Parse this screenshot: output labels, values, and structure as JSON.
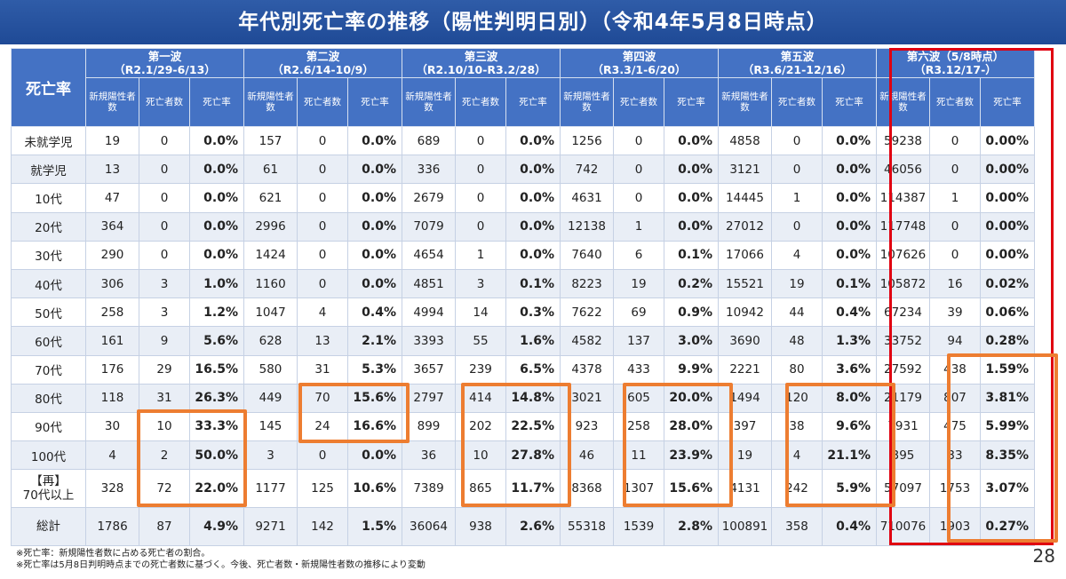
{
  "title": "年代別死亡率の推移（陽性判明日別）（令和4年5月8日時点）",
  "corner_label": "死亡率",
  "sub_headers": [
    "新規陽性者数",
    "死亡者数",
    "死亡率"
  ],
  "waves": [
    {
      "name": "第一波",
      "period": "（R2.1/29-6/13）"
    },
    {
      "name": "第二波",
      "period": "（R2.6/14-10/9）"
    },
    {
      "name": "第三波",
      "period": "（R2.10/10-R3.2/28）"
    },
    {
      "name": "第四波",
      "period": "（R3.3/1-6/20）"
    },
    {
      "name": "第五波",
      "period": "（R3.6/21-12/16）"
    },
    {
      "name": "第六波（5/8時点）",
      "period": "（R3.12/17-）"
    }
  ],
  "rows": [
    {
      "label": "未就学児",
      "cells": [
        [
          "19",
          "0",
          "0.0%"
        ],
        [
          "157",
          "0",
          "0.0%"
        ],
        [
          "689",
          "0",
          "0.0%"
        ],
        [
          "1256",
          "0",
          "0.0%"
        ],
        [
          "4858",
          "0",
          "0.0%"
        ],
        [
          "59238",
          "0",
          "0.00%"
        ]
      ]
    },
    {
      "label": "就学児",
      "cells": [
        [
          "13",
          "0",
          "0.0%"
        ],
        [
          "61",
          "0",
          "0.0%"
        ],
        [
          "336",
          "0",
          "0.0%"
        ],
        [
          "742",
          "0",
          "0.0%"
        ],
        [
          "3121",
          "0",
          "0.0%"
        ],
        [
          "46056",
          "0",
          "0.00%"
        ]
      ]
    },
    {
      "label": "10代",
      "cells": [
        [
          "47",
          "0",
          "0.0%"
        ],
        [
          "621",
          "0",
          "0.0%"
        ],
        [
          "2679",
          "0",
          "0.0%"
        ],
        [
          "4631",
          "0",
          "0.0%"
        ],
        [
          "14445",
          "1",
          "0.0%"
        ],
        [
          "114387",
          "1",
          "0.00%"
        ]
      ]
    },
    {
      "label": "20代",
      "cells": [
        [
          "364",
          "0",
          "0.0%"
        ],
        [
          "2996",
          "0",
          "0.0%"
        ],
        [
          "7079",
          "0",
          "0.0%"
        ],
        [
          "12138",
          "1",
          "0.0%"
        ],
        [
          "27012",
          "0",
          "0.0%"
        ],
        [
          "117748",
          "0",
          "0.00%"
        ]
      ]
    },
    {
      "label": "30代",
      "cells": [
        [
          "290",
          "0",
          "0.0%"
        ],
        [
          "1424",
          "0",
          "0.0%"
        ],
        [
          "4654",
          "1",
          "0.0%"
        ],
        [
          "7640",
          "6",
          "0.1%"
        ],
        [
          "17066",
          "4",
          "0.0%"
        ],
        [
          "107626",
          "0",
          "0.00%"
        ]
      ]
    },
    {
      "label": "40代",
      "cells": [
        [
          "306",
          "3",
          "1.0%"
        ],
        [
          "1160",
          "0",
          "0.0%"
        ],
        [
          "4851",
          "3",
          "0.1%"
        ],
        [
          "8223",
          "19",
          "0.2%"
        ],
        [
          "15521",
          "19",
          "0.1%"
        ],
        [
          "105872",
          "16",
          "0.02%"
        ]
      ]
    },
    {
      "label": "50代",
      "cells": [
        [
          "258",
          "3",
          "1.2%"
        ],
        [
          "1047",
          "4",
          "0.4%"
        ],
        [
          "4994",
          "14",
          "0.3%"
        ],
        [
          "7622",
          "69",
          "0.9%"
        ],
        [
          "10942",
          "44",
          "0.4%"
        ],
        [
          "67234",
          "39",
          "0.06%"
        ]
      ]
    },
    {
      "label": "60代",
      "cells": [
        [
          "161",
          "9",
          "5.6%"
        ],
        [
          "628",
          "13",
          "2.1%"
        ],
        [
          "3393",
          "55",
          "1.6%"
        ],
        [
          "4582",
          "137",
          "3.0%"
        ],
        [
          "3690",
          "48",
          "1.3%"
        ],
        [
          "33752",
          "94",
          "0.28%"
        ]
      ]
    },
    {
      "label": "70代",
      "cells": [
        [
          "176",
          "29",
          "16.5%"
        ],
        [
          "580",
          "31",
          "5.3%"
        ],
        [
          "3657",
          "239",
          "6.5%"
        ],
        [
          "4378",
          "433",
          "9.9%"
        ],
        [
          "2221",
          "80",
          "3.6%"
        ],
        [
          "27592",
          "438",
          "1.59%"
        ]
      ]
    },
    {
      "label": "80代",
      "cells": [
        [
          "118",
          "31",
          "26.3%"
        ],
        [
          "449",
          "70",
          "15.6%"
        ],
        [
          "2797",
          "414",
          "14.8%"
        ],
        [
          "3021",
          "605",
          "20.0%"
        ],
        [
          "1494",
          "120",
          "8.0%"
        ],
        [
          "21179",
          "807",
          "3.81%"
        ]
      ]
    },
    {
      "label": "90代",
      "cells": [
        [
          "30",
          "10",
          "33.3%"
        ],
        [
          "145",
          "24",
          "16.6%"
        ],
        [
          "899",
          "202",
          "22.5%"
        ],
        [
          "923",
          "258",
          "28.0%"
        ],
        [
          "397",
          "38",
          "9.6%"
        ],
        [
          "7931",
          "475",
          "5.99%"
        ]
      ]
    },
    {
      "label": "100代",
      "cells": [
        [
          "4",
          "2",
          "50.0%"
        ],
        [
          "3",
          "0",
          "0.0%"
        ],
        [
          "36",
          "10",
          "27.8%"
        ],
        [
          "46",
          "11",
          "23.9%"
        ],
        [
          "19",
          "4",
          "21.1%"
        ],
        [
          "395",
          "33",
          "8.35%"
        ]
      ]
    },
    {
      "label": "【再】\n70代以上",
      "tall": true,
      "cells": [
        [
          "328",
          "72",
          "22.0%"
        ],
        [
          "1177",
          "125",
          "10.6%"
        ],
        [
          "7389",
          "865",
          "11.7%"
        ],
        [
          "8368",
          "1307",
          "15.6%"
        ],
        [
          "4131",
          "242",
          "5.9%"
        ],
        [
          "57097",
          "1753",
          "3.07%"
        ]
      ]
    },
    {
      "label": "総計",
      "tall": true,
      "cells": [
        [
          "1786",
          "87",
          "4.9%"
        ],
        [
          "9271",
          "142",
          "1.5%"
        ],
        [
          "36064",
          "938",
          "2.6%"
        ],
        [
          "55318",
          "1539",
          "2.8%"
        ],
        [
          "100891",
          "358",
          "0.4%"
        ],
        [
          "710076",
          "1903",
          "0.27%"
        ]
      ]
    }
  ],
  "notes": [
    "※死亡率：新規陽性者数に占める死亡者の割合。",
    "※死亡率は5月8日判明時点までの死亡者数に基づく。今後、死亡者数・新規陽性者数の推移により変動"
  ],
  "page_number": "28",
  "colors": {
    "header_bg": "#4472c4",
    "title_bg": "#1f4a96",
    "highlight_red": "#e00010",
    "highlight_orange": "#ed7d31",
    "stripe": "#e9eef6"
  }
}
